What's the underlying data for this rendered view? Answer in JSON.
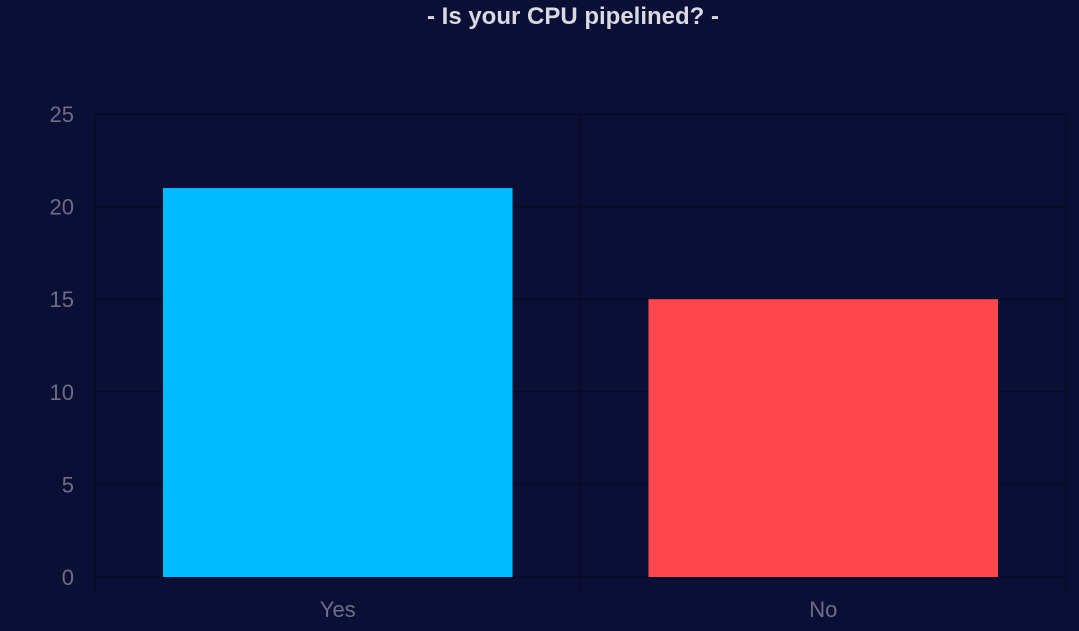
{
  "colors": {
    "background": "#0b0e35",
    "grid": "#070a26",
    "title": "#d9d9e3",
    "tick": "#6b6e86"
  },
  "chart_data": {
    "type": "bar",
    "title": "- Is your CPU pipelined? -",
    "categories": [
      "Yes",
      "No"
    ],
    "values": [
      21,
      15
    ],
    "bar_colors": [
      "#00bbff",
      "#ff474d"
    ],
    "ylim": [
      0,
      25
    ],
    "yticks": [
      0,
      5,
      10,
      15,
      20,
      25
    ],
    "xlabel": "",
    "ylabel": "",
    "grid": true,
    "legend": "none"
  }
}
